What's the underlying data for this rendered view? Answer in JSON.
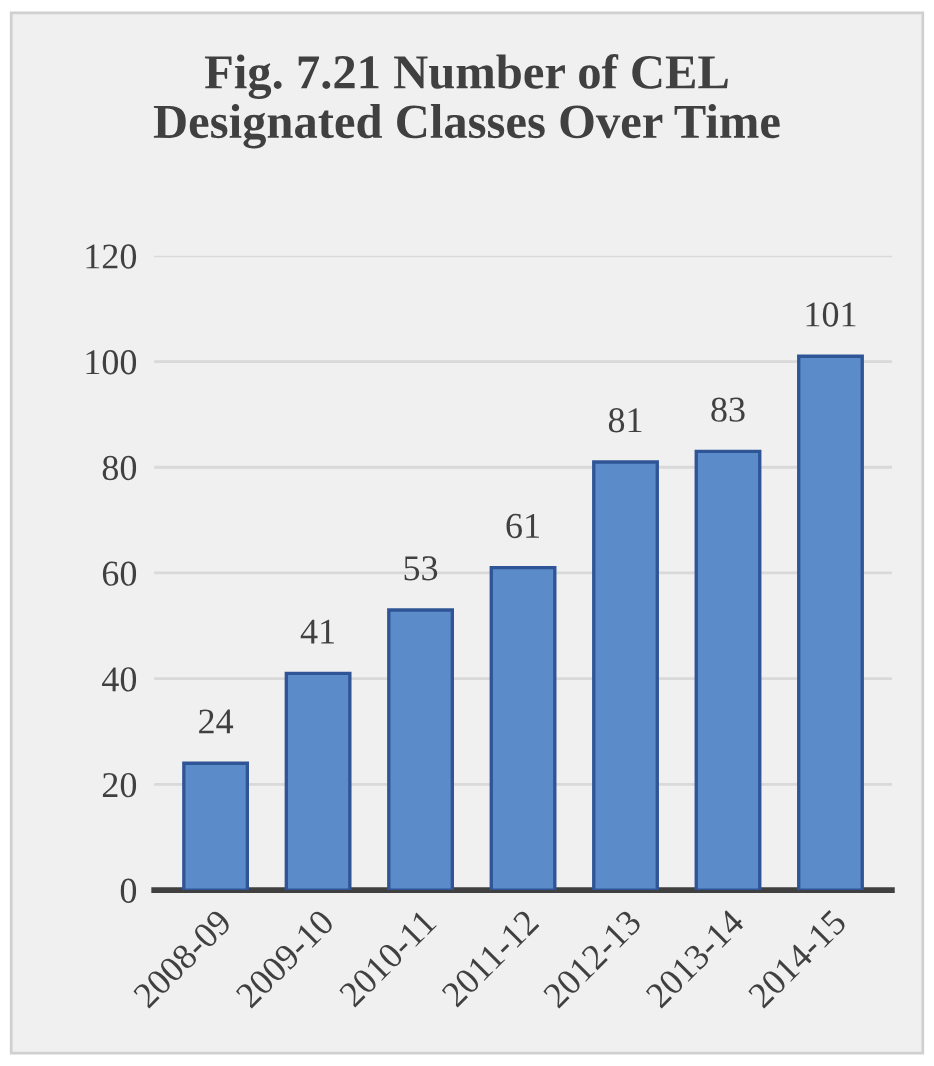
{
  "chart_data": {
    "type": "bar",
    "title": "Fig. 7.21 Number of CEL\nDesignated Classes Over Time",
    "categories": [
      "2008-09",
      "2009-10",
      "2010-11",
      "2011-12",
      "2012-13",
      "2013-14",
      "2014-15"
    ],
    "values": [
      24,
      41,
      53,
      61,
      81,
      83,
      101
    ],
    "color": "#5b8bc9",
    "ylim": [
      0,
      120
    ],
    "yticks": [
      0,
      20,
      40,
      60,
      80,
      100,
      120
    ],
    "grid": "y",
    "data_labels": true
  }
}
